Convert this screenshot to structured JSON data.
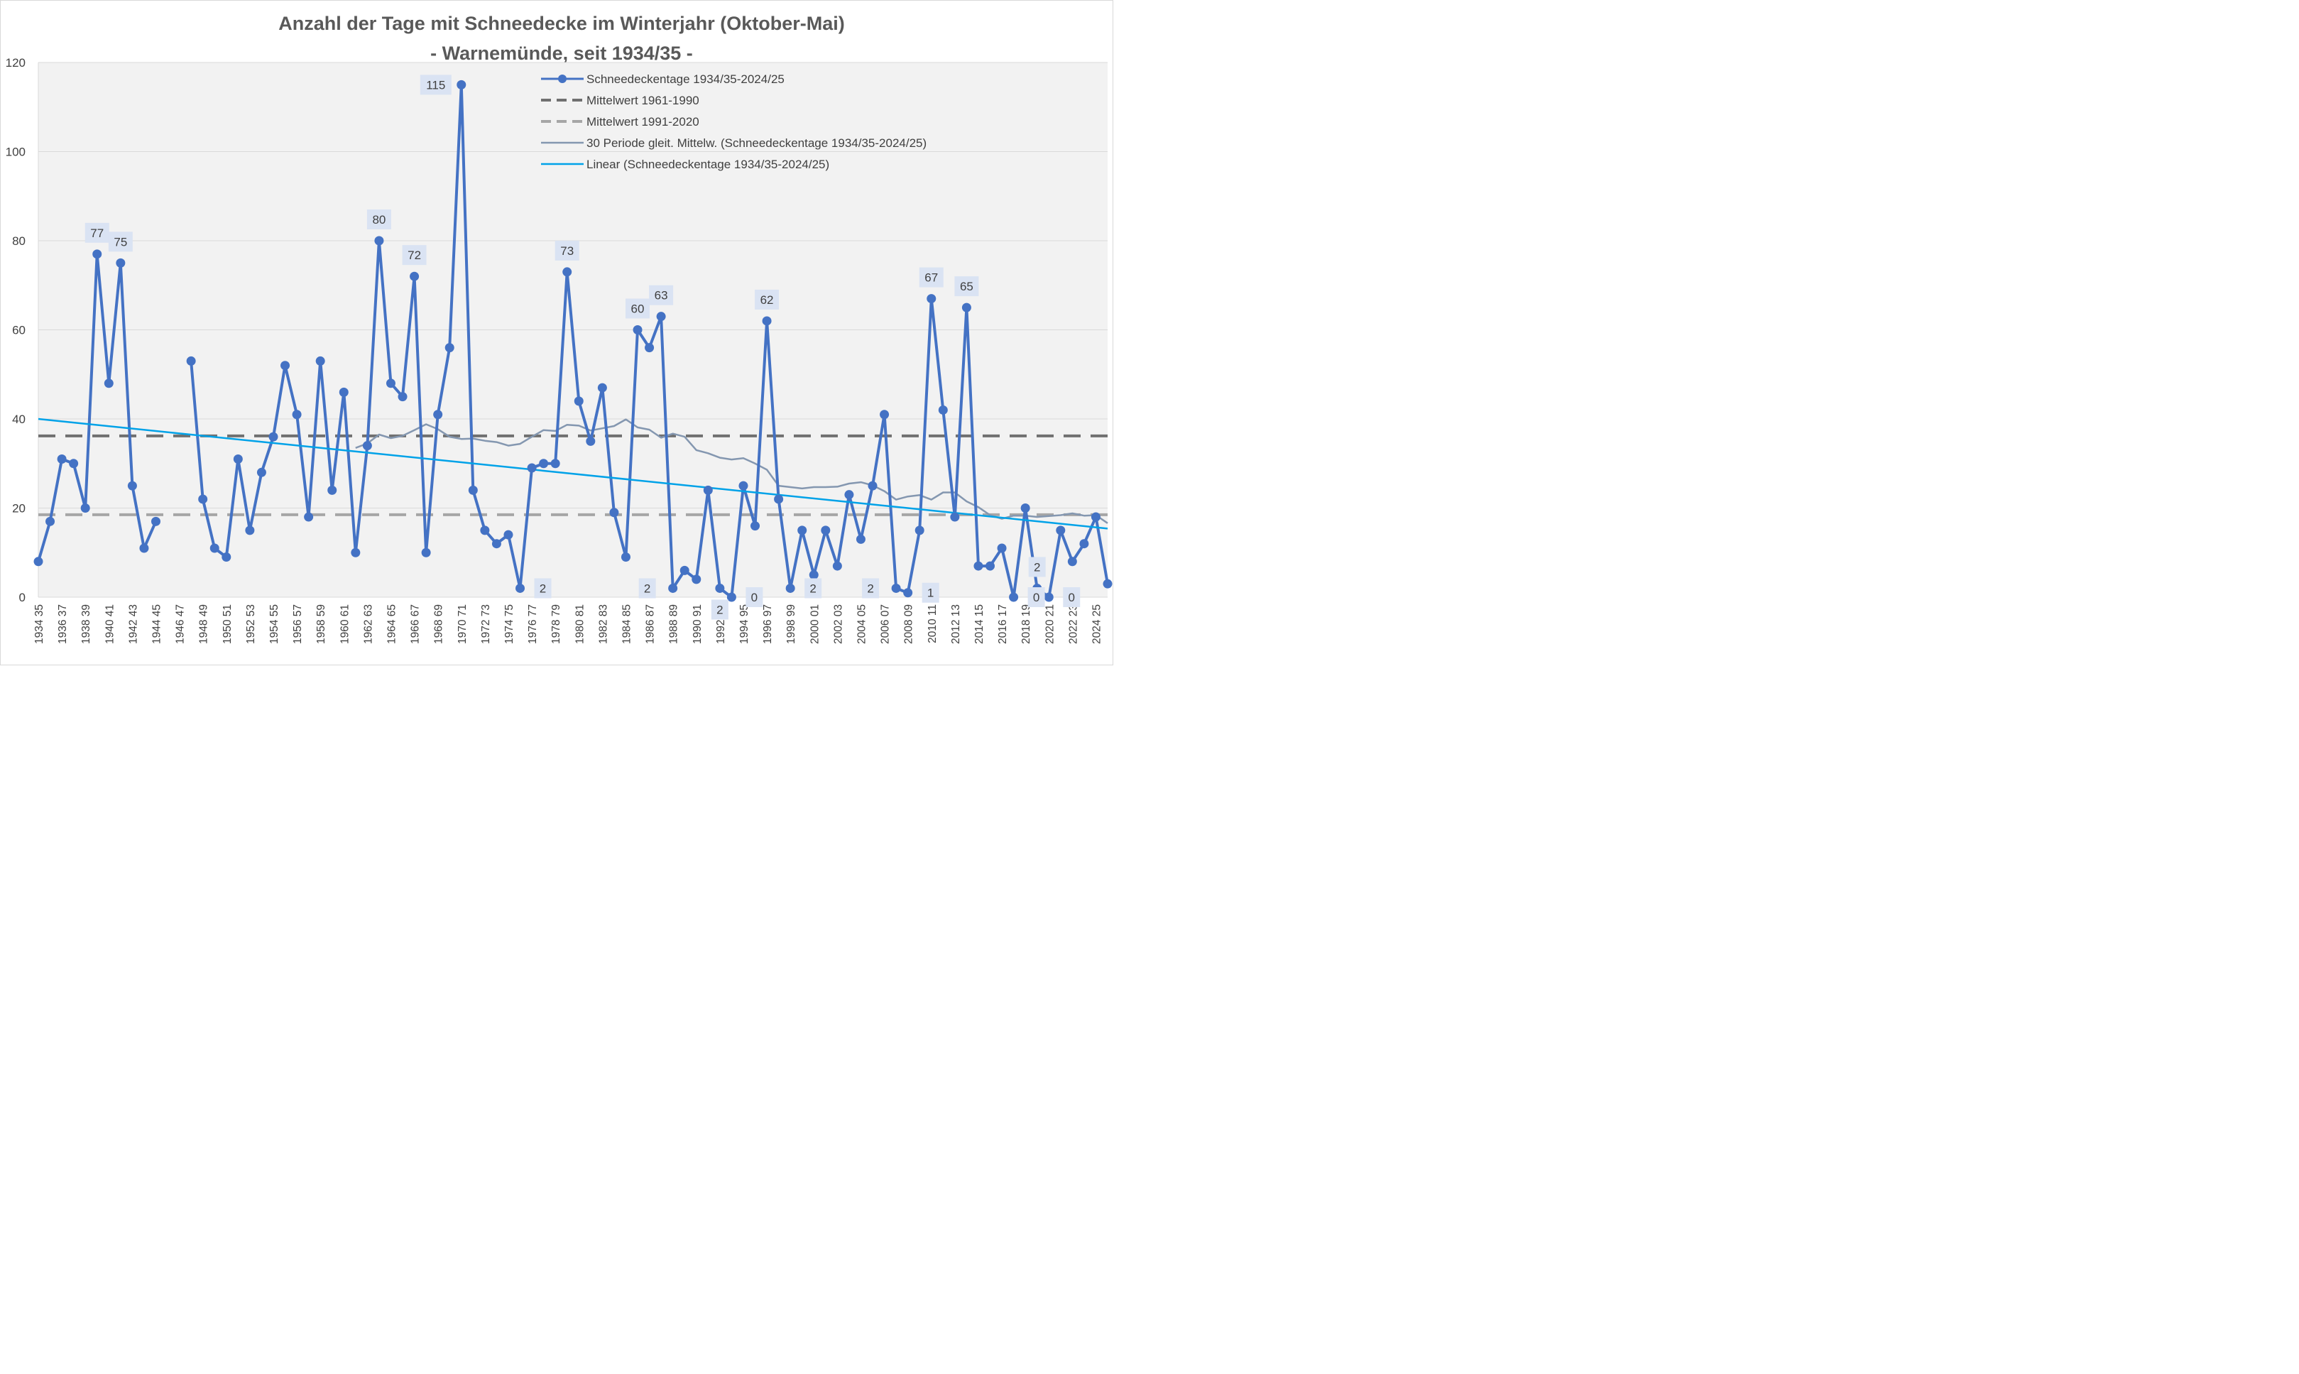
{
  "colors": {
    "main": "#4472C4",
    "mean1961": "#707070",
    "mean1991": "#A6A6A6",
    "moving": "#8497B0",
    "linear": "#00A2E8",
    "plotBg": "#F2F2F2",
    "grid": "#D9D9D9",
    "labelBg": "#DAE3F3"
  },
  "chart_data": {
    "type": "line",
    "title": "Anzahl der Tage mit Schneedecke im Winterjahr (Oktober-Mai)",
    "subtitle": "- Warnemünde, seit 1934/35 -",
    "ylim": [
      0,
      120
    ],
    "yticks": [
      "0",
      "20",
      "40",
      "60",
      "80",
      "100",
      "120"
    ],
    "x_tick_labels": [
      "1934 35",
      "1936 37",
      "1938 39",
      "1940 41",
      "1942 43",
      "1944 45",
      "1946 47",
      "1948 49",
      "1950 51",
      "1952 53",
      "1954 55",
      "1956 57",
      "1958 59",
      "1960 61",
      "1962 63",
      "1964 65",
      "1966 67",
      "1968 69",
      "1970 71",
      "1972 73",
      "1974 75",
      "1976 77",
      "1978 79",
      "1980 81",
      "1982 83",
      "1984 85",
      "1986 87",
      "1988 89",
      "1990 91",
      "1992 93",
      "1994 95",
      "1996 97",
      "1998 99",
      "2000 01",
      "2002 03",
      "2004 05",
      "2006 07",
      "2008 09",
      "2010 11",
      "2012 13",
      "2014 15",
      "2016 17",
      "2018 19",
      "2020 21",
      "2022 23",
      "2024 25"
    ],
    "series": [
      {
        "name": "Schneedeckentage 1934/35-2024/25",
        "values": [
          8,
          17,
          31,
          30,
          20,
          77,
          48,
          75,
          25,
          11,
          17,
          null,
          null,
          53,
          22,
          11,
          9,
          31,
          15,
          28,
          36,
          52,
          41,
          18,
          53,
          24,
          46,
          10,
          34,
          80,
          48,
          45,
          72,
          10,
          41,
          56,
          115,
          24,
          15,
          12,
          14,
          2,
          29,
          30,
          30,
          73,
          44,
          35,
          47,
          19,
          9,
          60,
          56,
          63,
          2,
          6,
          4,
          24,
          2,
          0,
          25,
          16,
          62,
          22,
          2,
          15,
          5,
          15,
          7,
          23,
          13,
          25,
          41,
          2,
          1,
          15,
          67,
          42,
          18,
          65,
          7,
          7,
          11,
          0,
          20,
          2,
          0,
          15,
          8,
          12,
          18,
          3
        ]
      },
      {
        "name": "Mittelwert 1961-1990",
        "value": 36.2
      },
      {
        "name": "Mittelwert 1991-2020",
        "value": 18.5
      },
      {
        "name": "30 Periode gleit. Mittelw. (Schneedeckentage 1934/35-2024/25)",
        "values": [
          33.5,
          34.5,
          36.5,
          35.7,
          36.2,
          37.5,
          38.8,
          37.7,
          36.0,
          35.5,
          35.6,
          35.1,
          34.8,
          34.0,
          34.4,
          36.0,
          37.5,
          37.3,
          38.7,
          38.5,
          37.4,
          37.9,
          38.4,
          39.9,
          38.1,
          37.6,
          35.8,
          36.7,
          36.0,
          33.0,
          32.3,
          31.3,
          30.9,
          31.2,
          30.0,
          28.6,
          25.0,
          24.7,
          24.4,
          24.7,
          24.7,
          24.8,
          25.5,
          25.8,
          25.1,
          23.8,
          21.9,
          22.6,
          22.9,
          21.9,
          23.5,
          23.5,
          21.5,
          20.2,
          18.4,
          17.6,
          18.3,
          18.3,
          18.0,
          18.2,
          18.4,
          18.8,
          18.3,
          18.4,
          16.6
        ]
      },
      {
        "name": "Linear (Schneedeckentage 1934/35-2024/25)",
        "start": 40.0,
        "end": 15.4
      }
    ],
    "data_labels": [
      {
        "i": 5,
        "text": "77",
        "pos": "above"
      },
      {
        "i": 7,
        "text": "75",
        "pos": "above"
      },
      {
        "i": 29,
        "text": "80",
        "pos": "above"
      },
      {
        "i": 32,
        "text": "72",
        "pos": "above"
      },
      {
        "i": 36,
        "text": "115",
        "pos": "left"
      },
      {
        "i": 41,
        "text": "2",
        "pos": "right"
      },
      {
        "i": 45,
        "text": "73",
        "pos": "above"
      },
      {
        "i": 51,
        "text": "60",
        "pos": "above"
      },
      {
        "i": 53,
        "text": "63",
        "pos": "above"
      },
      {
        "i": 54,
        "text": "2",
        "pos": "left"
      },
      {
        "i": 58,
        "text": "2",
        "pos": "below"
      },
      {
        "i": 59,
        "text": "0",
        "pos": "right"
      },
      {
        "i": 62,
        "text": "62",
        "pos": "above"
      },
      {
        "i": 64,
        "text": "2",
        "pos": "right"
      },
      {
        "i": 73,
        "text": "2",
        "pos": "left"
      },
      {
        "i": 74,
        "text": "1",
        "pos": "right"
      },
      {
        "i": 76,
        "text": "67",
        "pos": "above"
      },
      {
        "i": 79,
        "text": "65",
        "pos": "above"
      },
      {
        "i": 83,
        "text": "0",
        "pos": "right"
      },
      {
        "i": 85,
        "text": "2",
        "pos": "above"
      },
      {
        "i": 86,
        "text": "0",
        "pos": "right"
      }
    ],
    "legend_position": "top-right"
  }
}
